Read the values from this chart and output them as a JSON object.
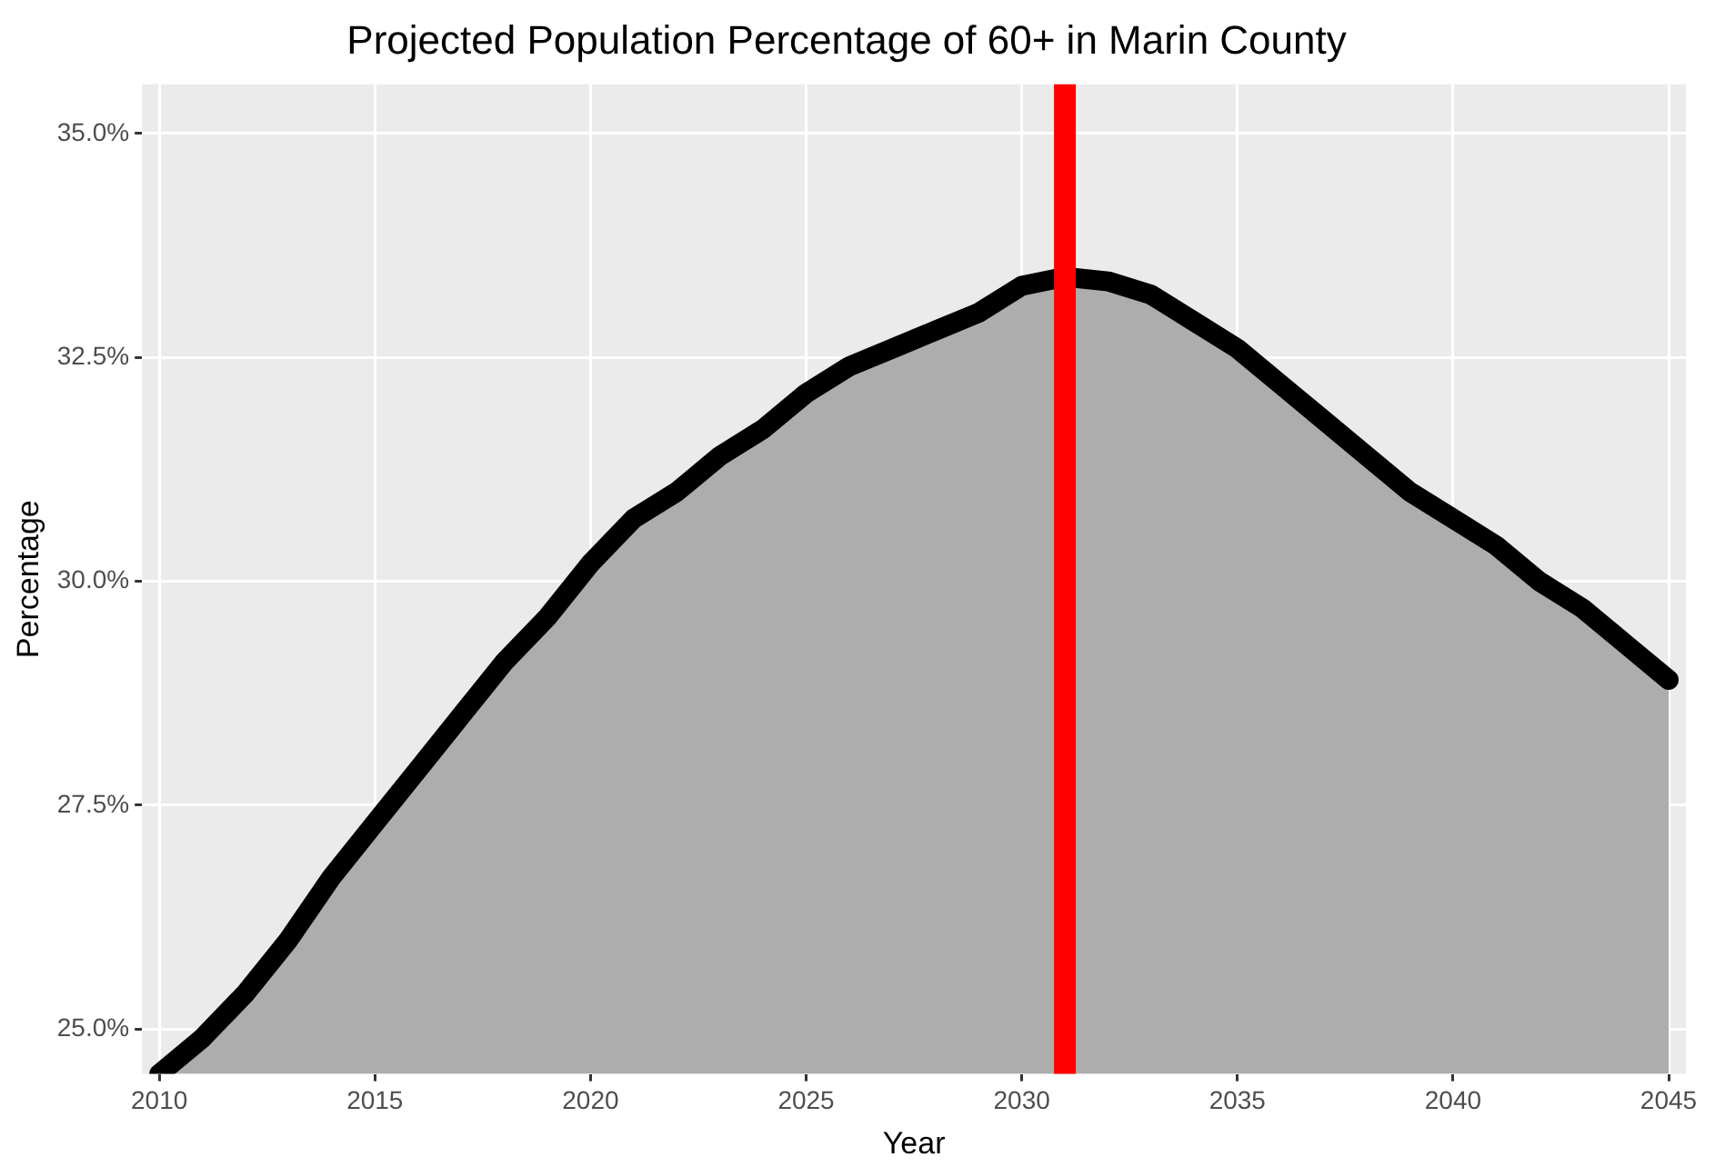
{
  "chart_data": {
    "type": "area",
    "title": "Projected Population Percentage of 60+ in Marin County",
    "xlabel": "Year",
    "ylabel": "Percentage",
    "x": [
      2010,
      2011,
      2012,
      2013,
      2014,
      2015,
      2016,
      2017,
      2018,
      2019,
      2020,
      2021,
      2022,
      2023,
      2024,
      2025,
      2026,
      2027,
      2028,
      2029,
      2030,
      2031,
      2032,
      2033,
      2034,
      2035,
      2036,
      2037,
      2038,
      2039,
      2040,
      2041,
      2042,
      2043,
      2044,
      2045
    ],
    "series": [
      {
        "color": "#000000",
        "values": [
          24.5,
          24.9,
          25.4,
          26.0,
          26.7,
          27.3,
          27.9,
          28.5,
          29.1,
          29.6,
          30.2,
          30.7,
          31.0,
          31.4,
          31.7,
          32.1,
          32.4,
          32.6,
          32.8,
          33.0,
          33.3,
          33.4,
          33.35,
          33.2,
          32.9,
          32.6,
          32.2,
          31.8,
          31.4,
          31.0,
          30.7,
          30.4,
          30.0,
          29.7,
          29.3,
          28.9
        ]
      }
    ],
    "xlim": [
      2009.6,
      2045.4
    ],
    "xticks": [
      2010,
      2015,
      2020,
      2025,
      2030,
      2035,
      2040,
      2045
    ],
    "ylim": [
      24.5,
      35.55
    ],
    "yticks": [
      {
        "value": 25,
        "label": "25.0%"
      },
      {
        "value": 27.5,
        "label": "27.5%"
      },
      {
        "value": 30,
        "label": "30.0%"
      },
      {
        "value": 32.5,
        "label": "32.5%"
      },
      {
        "value": 35,
        "label": "35.0%"
      }
    ],
    "ref_lines": [
      {
        "axis": "x",
        "value": 2031,
        "color": "#ff0000"
      }
    ],
    "grid": true,
    "legend": false
  }
}
